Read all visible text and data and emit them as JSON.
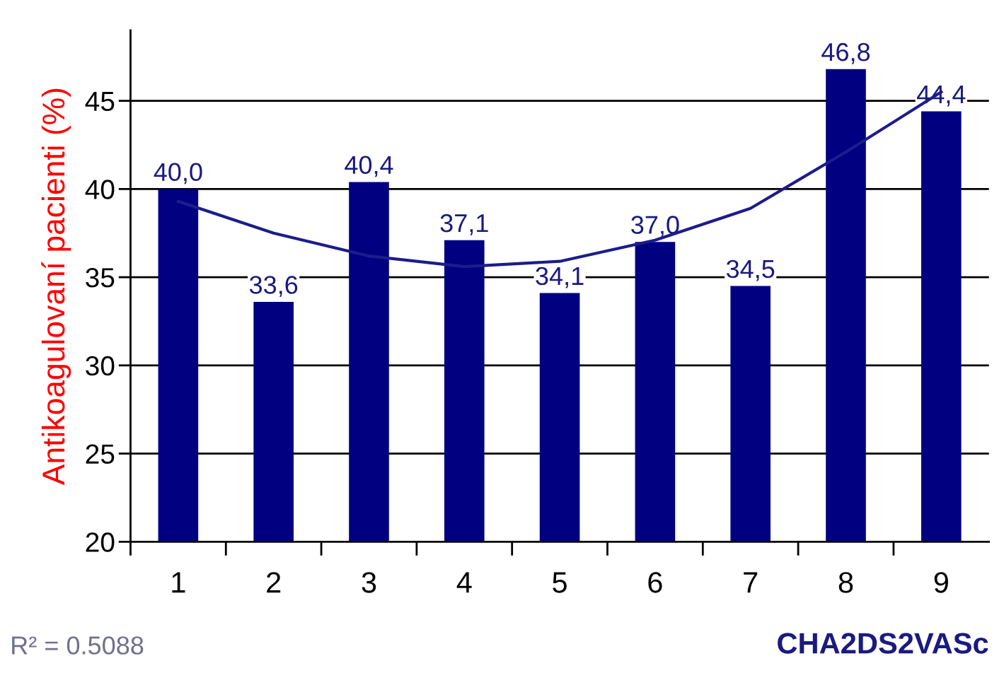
{
  "chart_data": {
    "type": "bar",
    "ylabel": "Antikoagulovaní pacienti (%)",
    "xlabel": "CHA2DS2VASc",
    "categories": [
      "1",
      "2",
      "3",
      "4",
      "5",
      "6",
      "7",
      "8",
      "9"
    ],
    "series": [
      {
        "color": "#000080",
        "values": [
          40.0,
          33.6,
          40.4,
          37.1,
          34.1,
          37.0,
          34.5,
          46.8,
          44.4
        ],
        "value_labels": [
          "40,0",
          "33,6",
          "40,4",
          "37,1",
          "34,1",
          "37,0",
          "34,5",
          "46,8",
          "44,4"
        ]
      },
      {
        "type": "line",
        "color": "#1c1c8c",
        "x": [
          "1",
          "2",
          "3",
          "4",
          "5",
          "6",
          "7",
          "8",
          "9"
        ],
        "values": [
          39.3,
          37.5,
          36.2,
          35.6,
          35.9,
          37.1,
          38.9,
          42.1,
          45.5
        ]
      }
    ],
    "ylim": [
      20,
      49
    ],
    "yticks": [
      20,
      25,
      30,
      35,
      40,
      45
    ],
    "grid": "y",
    "legend": false,
    "annotations": [
      "R² = 0.5088"
    ]
  }
}
